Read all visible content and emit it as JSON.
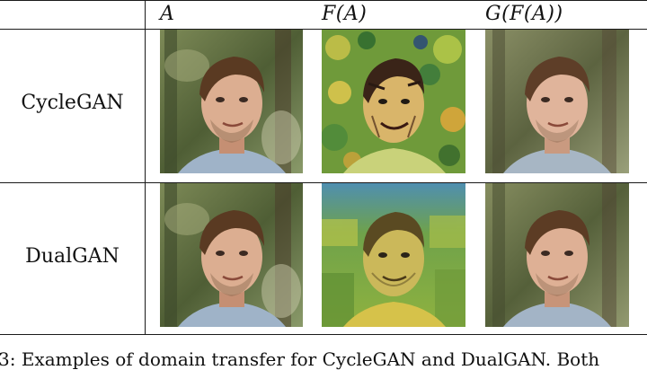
{
  "table": {
    "headers": [
      "A",
      "F(A)",
      "G(F(A))"
    ],
    "rows": [
      {
        "label": "CycleGAN"
      },
      {
        "label": "DualGAN"
      }
    ]
  },
  "caption": {
    "text": "3: Examples of domain transfer for CycleGAN and DualGAN. Both"
  },
  "colors": {
    "forest": "#5b6b3c",
    "skin": "#d9a98c",
    "hair": "#5a3a22",
    "shirt": "#9fb3c8",
    "painted_green": "#7aa83f",
    "painted_yellow": "#d6c24a"
  }
}
